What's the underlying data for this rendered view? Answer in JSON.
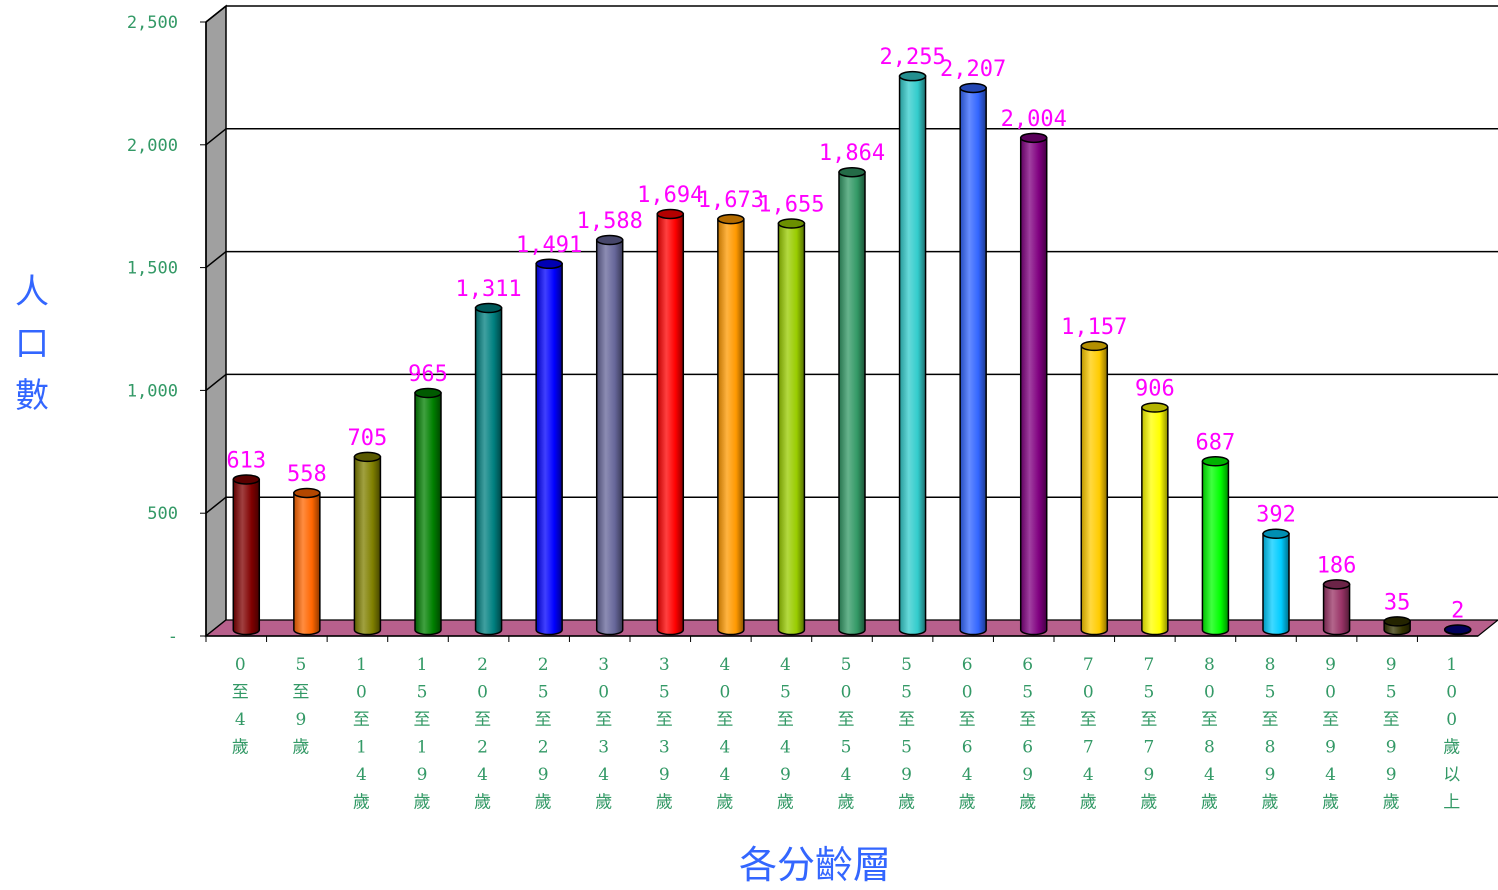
{
  "chart_data": {
    "type": "bar",
    "title": "",
    "xlabel": "各分齡層",
    "ylabel": "人口數",
    "ylim": [
      0,
      2500
    ],
    "yticks": [
      0,
      500,
      1000,
      1500,
      2000,
      2500
    ],
    "ytick_labels": [
      "-",
      "500",
      "1,000",
      "1,500",
      "2,000",
      "2,500"
    ],
    "grid": true,
    "legend": "none",
    "categories": [
      "0至4歲",
      "5至9歲",
      "10至14歲",
      "15至19歲",
      "20至24歲",
      "25至29歲",
      "30至34歲",
      "35至39歲",
      "40至44歲",
      "45至49歲",
      "50至54歲",
      "55至59歲",
      "60至64歲",
      "65至69歲",
      "70至74歲",
      "75至79歲",
      "80至84歲",
      "85至89歲",
      "90至94歲",
      "95至99歲",
      "100歲以上"
    ],
    "values": [
      613,
      558,
      705,
      965,
      1311,
      1491,
      1588,
      1694,
      1673,
      1655,
      1864,
      2255,
      2207,
      2004,
      1157,
      906,
      687,
      392,
      186,
      35,
      2
    ],
    "value_labels": [
      "613",
      "558",
      "705",
      "965",
      "1,311",
      "1,491",
      "1,588",
      "1,694",
      "1,673",
      "1,655",
      "1,864",
      "2,255",
      "2,207",
      "2,004",
      "1,157",
      "906",
      "687",
      "392",
      "186",
      "35",
      "2"
    ],
    "colors": [
      "#800000",
      "#ff6600",
      "#808000",
      "#008000",
      "#008080",
      "#0000ff",
      "#666699",
      "#ff0000",
      "#ff9900",
      "#99cc00",
      "#339966",
      "#33cccc",
      "#3366ff",
      "#800080",
      "#ffcc00",
      "#ffff00",
      "#00ff00",
      "#00ccff",
      "#993366",
      "#333300",
      "#000080"
    ],
    "style": {
      "label_color": "#ff00ff",
      "tick_color": "#339966",
      "axis_title_color": "#3366ff",
      "floor_color": "#b8608c",
      "wall_color": "#a0a0a0"
    }
  }
}
